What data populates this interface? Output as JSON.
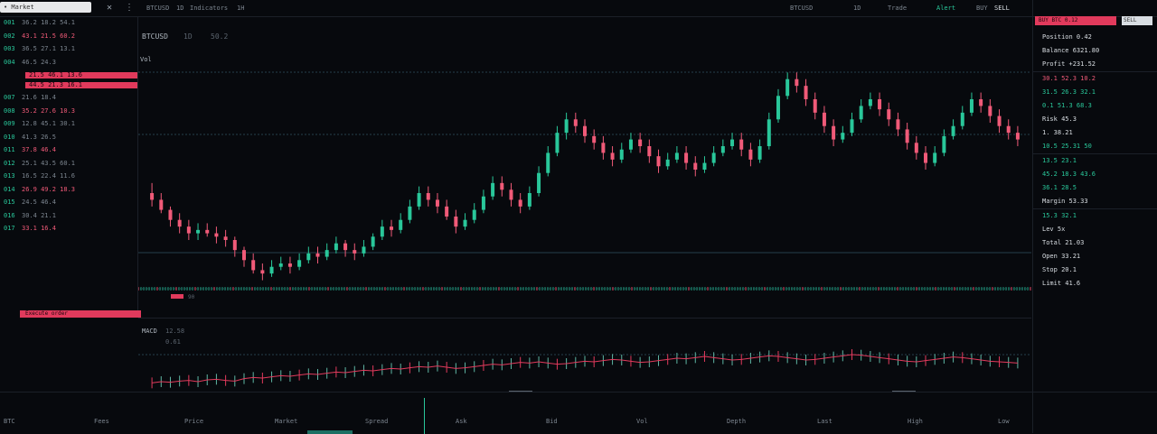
{
  "topbar": {
    "search_label": "• Market",
    "items": [
      "BTCUSD",
      "1D",
      "Indicators",
      "1H"
    ],
    "right_items": [
      "BTCUSD",
      "1D",
      "Trade",
      "Alert",
      "BUY",
      "SELL"
    ],
    "close_icon": "close-icon",
    "search_icon": "search-icon"
  },
  "left_panel": {
    "rows": [
      {
        "idx": "001",
        "text": "36.2  18.2  54.1",
        "hl": false
      },
      {
        "idx": "002",
        "text": "43.1  21.5  60.2",
        "hl": false
      },
      {
        "idx": "003",
        "text": "36.5  27.1  13.1",
        "hl": false
      },
      {
        "idx": "004",
        "text": "46.5  24.3",
        "hl": false
      },
      {
        "idx": "005",
        "text": "21.5  46.1  13.6",
        "hl": true
      },
      {
        "idx": "006",
        "text": "44.5  21.3  16.1",
        "hl": true
      },
      {
        "idx": "007",
        "text": "21.6  18.4",
        "hl": false
      },
      {
        "idx": "008",
        "text": "35.2  27.6  10.3",
        "hl": false
      },
      {
        "idx": "009",
        "text": "12.8  45.1  30.1",
        "hl": false
      },
      {
        "idx": "010",
        "text": "41.3  26.5",
        "hl": false
      },
      {
        "idx": "011",
        "text": "37.8  46.4",
        "hl": false
      },
      {
        "idx": "012",
        "text": "25.1  43.5  60.1",
        "hl": false
      },
      {
        "idx": "013",
        "text": "16.5  22.4  11.6",
        "hl": false
      },
      {
        "idx": "014",
        "text": "26.9  49.2  18.3",
        "hl": false
      },
      {
        "idx": "015",
        "text": "24.5  46.4",
        "hl": false
      },
      {
        "idx": "016",
        "text": "30.4  21.1",
        "hl": false
      },
      {
        "idx": "017",
        "text": "33.1  16.4",
        "hl": false
      }
    ],
    "footer_bar": "Execute order"
  },
  "main_chart": {
    "header": [
      "BTCUSD",
      "1D",
      "50.2"
    ],
    "sub_label": "Vol",
    "price_tag": "60",
    "volume_tag": "90"
  },
  "chart_data": {
    "type": "candlestick",
    "candles": [
      [
        48,
        46,
        51,
        44
      ],
      [
        46,
        43,
        48,
        42
      ],
      [
        43,
        40,
        44,
        38
      ],
      [
        40,
        38,
        42,
        36
      ],
      [
        38,
        36,
        40,
        34
      ],
      [
        36,
        37,
        39,
        34
      ],
      [
        37,
        36,
        39,
        35
      ],
      [
        36,
        35,
        38,
        33
      ],
      [
        35,
        34,
        37,
        32
      ],
      [
        34,
        31,
        35,
        29
      ],
      [
        31,
        28,
        32,
        26
      ],
      [
        28,
        25,
        30,
        24
      ],
      [
        25,
        24,
        27,
        22
      ],
      [
        24,
        26,
        28,
        23
      ],
      [
        26,
        27,
        29,
        25
      ],
      [
        27,
        26,
        29,
        24
      ],
      [
        26,
        28,
        30,
        25
      ],
      [
        28,
        30,
        32,
        27
      ],
      [
        30,
        29,
        32,
        27
      ],
      [
        29,
        31,
        33,
        28
      ],
      [
        31,
        33,
        35,
        30
      ],
      [
        33,
        31,
        34,
        29
      ],
      [
        31,
        30,
        33,
        28
      ],
      [
        30,
        32,
        34,
        29
      ],
      [
        32,
        35,
        36,
        31
      ],
      [
        35,
        38,
        40,
        34
      ],
      [
        38,
        37,
        40,
        35
      ],
      [
        37,
        40,
        42,
        36
      ],
      [
        40,
        44,
        46,
        39
      ],
      [
        44,
        48,
        50,
        43
      ],
      [
        48,
        46,
        50,
        44
      ],
      [
        46,
        44,
        48,
        42
      ],
      [
        44,
        41,
        46,
        40
      ],
      [
        41,
        38,
        43,
        36
      ],
      [
        38,
        40,
        42,
        37
      ],
      [
        40,
        43,
        45,
        39
      ],
      [
        43,
        47,
        49,
        42
      ],
      [
        47,
        51,
        53,
        46
      ],
      [
        51,
        49,
        53,
        47
      ],
      [
        49,
        46,
        51,
        44
      ],
      [
        46,
        44,
        48,
        42
      ],
      [
        44,
        48,
        50,
        43
      ],
      [
        48,
        54,
        56,
        47
      ],
      [
        54,
        60,
        62,
        53
      ],
      [
        60,
        66,
        68,
        59
      ],
      [
        66,
        70,
        72,
        64
      ],
      [
        70,
        68,
        72,
        66
      ],
      [
        68,
        65,
        70,
        63
      ],
      [
        65,
        63,
        67,
        61
      ],
      [
        63,
        60,
        65,
        58
      ],
      [
        60,
        58,
        62,
        56
      ],
      [
        58,
        61,
        63,
        57
      ],
      [
        61,
        64,
        66,
        60
      ],
      [
        64,
        62,
        66,
        60
      ],
      [
        62,
        59,
        64,
        57
      ],
      [
        59,
        56,
        61,
        54
      ],
      [
        56,
        58,
        60,
        55
      ],
      [
        58,
        60,
        62,
        57
      ],
      [
        60,
        57,
        62,
        55
      ],
      [
        57,
        55,
        59,
        53
      ],
      [
        55,
        57,
        59,
        54
      ],
      [
        57,
        60,
        62,
        56
      ],
      [
        60,
        62,
        64,
        59
      ],
      [
        62,
        64,
        66,
        61
      ],
      [
        64,
        61,
        66,
        59
      ],
      [
        61,
        58,
        63,
        56
      ],
      [
        58,
        62,
        64,
        57
      ],
      [
        62,
        70,
        72,
        61
      ],
      [
        70,
        77,
        79,
        69
      ],
      [
        77,
        82,
        84,
        76
      ],
      [
        82,
        80,
        84,
        78
      ],
      [
        80,
        76,
        82,
        74
      ],
      [
        76,
        72,
        78,
        70
      ],
      [
        72,
        68,
        74,
        66
      ],
      [
        68,
        64,
        70,
        62
      ],
      [
        64,
        66,
        68,
        63
      ],
      [
        66,
        70,
        72,
        65
      ],
      [
        70,
        74,
        76,
        69
      ],
      [
        74,
        76,
        78,
        73
      ],
      [
        76,
        73,
        78,
        71
      ],
      [
        73,
        70,
        75,
        68
      ],
      [
        70,
        67,
        72,
        65
      ],
      [
        67,
        63,
        69,
        61
      ],
      [
        63,
        60,
        65,
        58
      ],
      [
        60,
        57,
        62,
        55
      ],
      [
        57,
        60,
        62,
        56
      ],
      [
        60,
        65,
        67,
        59
      ],
      [
        65,
        68,
        70,
        64
      ],
      [
        68,
        72,
        74,
        67
      ],
      [
        72,
        76,
        78,
        71
      ],
      [
        76,
        74,
        78,
        72
      ],
      [
        74,
        71,
        76,
        69
      ],
      [
        71,
        68,
        73,
        66
      ],
      [
        68,
        66,
        70,
        64
      ],
      [
        66,
        64,
        68,
        62
      ]
    ],
    "indicator_values": [
      10,
      12,
      11,
      13,
      14,
      12,
      15,
      16,
      14,
      13,
      17,
      19,
      18,
      20,
      22,
      21,
      23,
      25,
      24,
      26,
      28,
      27,
      29,
      31,
      30,
      32,
      34,
      33,
      35,
      37,
      36,
      38,
      36,
      34,
      35,
      37,
      39,
      41,
      40,
      42,
      44,
      43,
      45,
      43,
      41,
      42,
      44,
      46,
      45,
      47,
      49,
      48,
      46,
      44,
      45,
      47,
      49,
      51,
      50,
      52,
      54,
      52,
      50,
      48,
      49,
      51,
      53,
      55,
      54,
      52,
      50,
      48,
      49,
      51,
      53,
      55,
      57,
      56,
      54,
      52,
      50,
      48,
      46,
      45,
      47,
      49,
      51,
      53,
      52,
      50,
      48,
      46,
      45,
      44,
      43
    ]
  },
  "indicator_panel": {
    "label": "MACD",
    "value_a": "12.58",
    "value_b": "0.61"
  },
  "bottom_strip": {
    "labels": [
      "BTC",
      "Fees",
      "Price",
      "Market",
      "Spread",
      "Ask",
      "Bid",
      "Vol",
      "Depth",
      "Last",
      "High",
      "Low"
    ]
  },
  "right_panel": {
    "header_red": "BUY  BTC  0.12",
    "header_white": "SELL",
    "rows": [
      {
        "text": "Position  0.42",
        "color": "white"
      },
      {
        "text": "Balance  6321.80",
        "color": "white"
      },
      {
        "text": "Profit  +231.52",
        "color": "white"
      },
      {
        "text": "30.1  52.3  10.2",
        "color": "red"
      },
      {
        "text": "31.5  26.3  32.1",
        "color": "green"
      },
      {
        "text": "0.1  51.3  68.3",
        "color": "green"
      },
      {
        "text": "Risk  45.3",
        "color": "white"
      },
      {
        "text": "1.  38.21",
        "color": "white"
      },
      {
        "text": "10.5  25.31  50",
        "color": "green"
      },
      {
        "text": "13.5  23.1",
        "color": "green"
      },
      {
        "text": "45.2  18.3  43.6",
        "color": "green"
      },
      {
        "text": "36.1  28.5",
        "color": "green"
      },
      {
        "text": "Margin  53.33",
        "color": "white"
      },
      {
        "text": "15.3  32.1",
        "color": "green"
      },
      {
        "text": "Lev  5x",
        "color": "white"
      },
      {
        "text": "Total  21.03",
        "color": "white"
      },
      {
        "text": "Open  33.21",
        "color": "white"
      },
      {
        "text": "Stop  20.1",
        "color": "white"
      },
      {
        "text": "Limit  41.6",
        "color": "white"
      }
    ]
  },
  "colors": {
    "up": "#29c79a",
    "down": "#f05a78",
    "bg": "#07090d",
    "grid": "#1e3a3a"
  }
}
